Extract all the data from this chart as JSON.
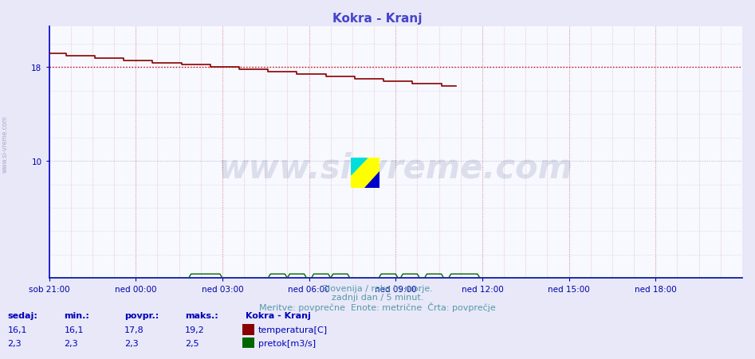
{
  "title": "Kokra - Kranj",
  "title_color": "#4444cc",
  "bg_color": "#e8e8f8",
  "plot_bg_color": "#f8f8ff",
  "grid_color_red": "#ddaaaa",
  "grid_color_blue": "#ccccdd",
  "axis_color": "#0000cc",
  "tick_color": "#0000aa",
  "x_tick_labels": [
    "sob 21:00",
    "ned 00:00",
    "ned 03:00",
    "ned 06:00",
    "ned 09:00",
    "ned 12:00",
    "ned 15:00",
    "ned 18:00"
  ],
  "x_tick_positions": [
    0,
    36,
    72,
    108,
    144,
    180,
    216,
    252
  ],
  "ylim": [
    0,
    21.5
  ],
  "xlim": [
    0,
    288
  ],
  "temp_color": "#880000",
  "flow_color": "#006600",
  "watermark_text": "www.si-vreme.com",
  "watermark_color": "#1a3a6e",
  "watermark_fontsize": 30,
  "subtitle1": "Slovenija / reke in morje.",
  "subtitle2": "zadnji dan / 5 minut.",
  "subtitle3": "Meritve: povprečne  Enote: metrične  Črta: povprečje",
  "subtitle_color": "#5599aa",
  "legend_title": "Kokra - Kranj",
  "legend_color": "#0000bb",
  "stat_headers": [
    "sedaj:",
    "min.:",
    "povpr.:",
    "maks.:"
  ],
  "stat_temp": [
    "16,1",
    "16,1",
    "17,8",
    "19,2"
  ],
  "stat_flow": [
    "2,3",
    "2,3",
    "2,3",
    "2,5"
  ],
  "left_label": "www.si-vreme.com",
  "left_label_color": "#aaaacc",
  "dashed_line_value": 18.0,
  "dashed_line_color": "#cc0000",
  "logo_yellow": "#ffff00",
  "logo_cyan": "#00dddd",
  "logo_blue": "#0000cc"
}
